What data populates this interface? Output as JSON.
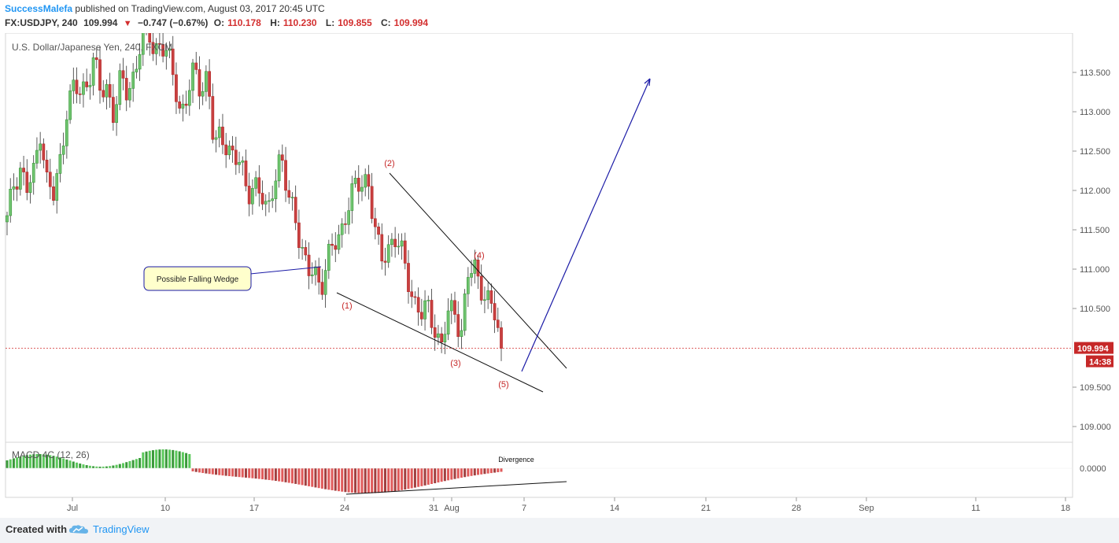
{
  "header": {
    "author": "SuccessMalefa",
    "published": "published on TradingView.com, August 03, 2017 20:45 UTC",
    "symbol": "FX:USDJPY, 240",
    "last": "109.994",
    "change": "−0.747 (−0.67%)",
    "open_label": "O:",
    "open": "110.178",
    "high_label": "H:",
    "high": "110.230",
    "low_label": "L:",
    "low": "109.855",
    "close_label": "C:",
    "close": "109.994"
  },
  "chart_data": {
    "type": "candlestick",
    "title": "U.S. Dollar/Japanese Yen, 240, FXCM",
    "y_ticks": [
      "113.500",
      "113.000",
      "112.500",
      "112.000",
      "111.500",
      "111.000",
      "110.500",
      "109.500",
      "109.000"
    ],
    "ylim": [
      108.8,
      114.2
    ],
    "x_ticks": [
      "Jul",
      "10",
      "17",
      "24",
      "31",
      "Aug",
      "7",
      "14",
      "21",
      "28",
      "Sep",
      "11",
      "18"
    ],
    "last_price": 109.994,
    "last_price_label": "109.994",
    "countdown": "14:38",
    "annotation_callout": "Possible Falling Wedge",
    "wave_labels": [
      {
        "label": "(1)",
        "price": 110.5
      },
      {
        "label": "(2)",
        "price": 112.25
      },
      {
        "label": "(3)",
        "price": 109.73
      },
      {
        "label": "(4)",
        "price": 111.08
      },
      {
        "label": "(5)",
        "price": 109.46
      }
    ],
    "closes_path": [
      111.6,
      112.1,
      112.3,
      112.0,
      112.2,
      112.8,
      112.1,
      111.9,
      112.4,
      113.1,
      113.3,
      113.2,
      113.4,
      113.7,
      113.2,
      113.3,
      113.0,
      113.4,
      113.2,
      113.5,
      113.9,
      114.0,
      113.8,
      113.9,
      113.7,
      113.4,
      113.0,
      113.2,
      113.5,
      113.3,
      113.5,
      112.5,
      112.7,
      112.6,
      112.4,
      112.3,
      112.0,
      112.1,
      111.9,
      111.7,
      112.2,
      112.4,
      111.9,
      111.8,
      111.3,
      110.9,
      111.0,
      110.8,
      111.1,
      111.3,
      111.5,
      111.8,
      112.0,
      112.1,
      112.2,
      111.5,
      111.1,
      111.3,
      111.4,
      111.2,
      110.9,
      110.6,
      110.4,
      110.5,
      110.3,
      110.0,
      110.4,
      110.5,
      110.2,
      110.9,
      111.0,
      110.8,
      110.6,
      110.4,
      110.0
    ],
    "macd": {
      "label": "MACD 4C (12, 26)",
      "zero_label": "0.0000",
      "annotation": "Divergence"
    }
  }
}
